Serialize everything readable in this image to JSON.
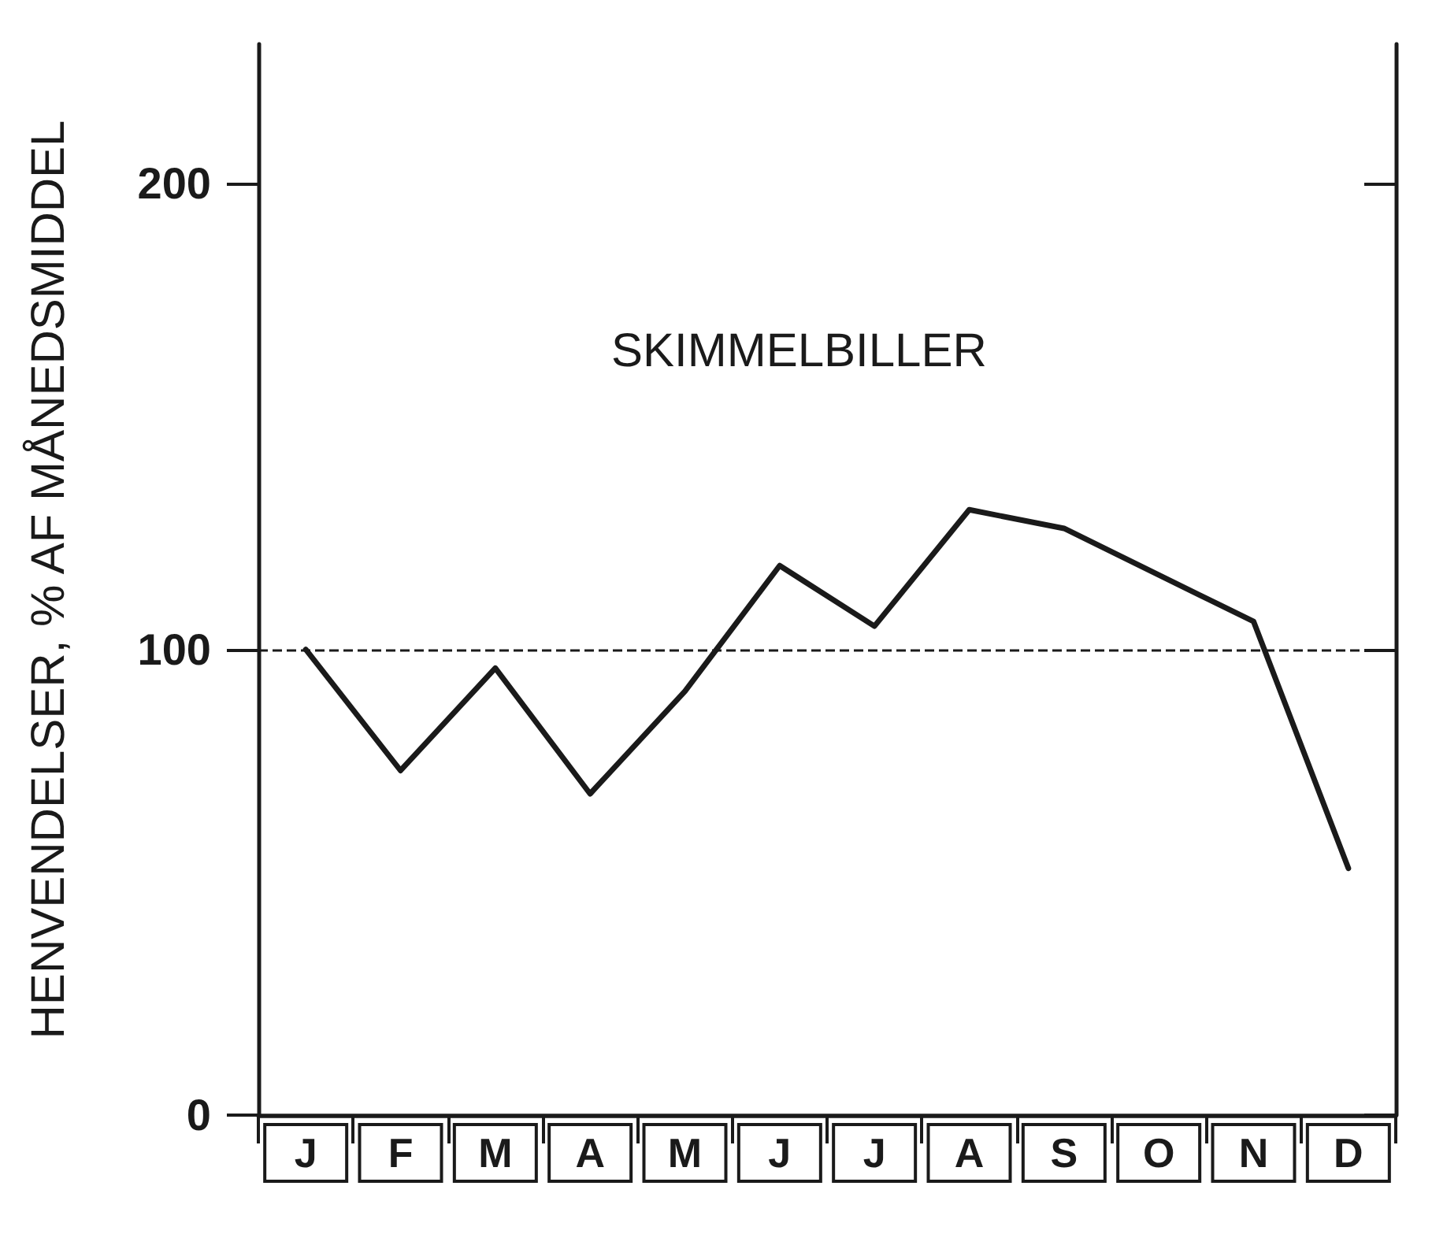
{
  "chart_data": {
    "type": "line",
    "ylabel": "HENVENDELSER, % AF MÅNEDSMIDDEL",
    "categories": [
      "J",
      "F",
      "M",
      "A",
      "M",
      "J",
      "J",
      "A",
      "S",
      "O",
      "N",
      "D"
    ],
    "series": [
      {
        "color": "#1a1a1a",
        "values": [
          100,
          74,
          96,
          69,
          91,
          118,
          105,
          130,
          126,
          116,
          106,
          53
        ]
      }
    ],
    "ylim": [
      0,
      230
    ],
    "yticks": [
      0,
      100,
      200
    ],
    "marker": "none",
    "line_style": "solid",
    "ref_lines": [
      {
        "axis": "y",
        "value": 100,
        "color": "#1a1a1a",
        "line_style": "dashed"
      }
    ],
    "annotations": [
      "SKIMMELBILLER"
    ]
  }
}
